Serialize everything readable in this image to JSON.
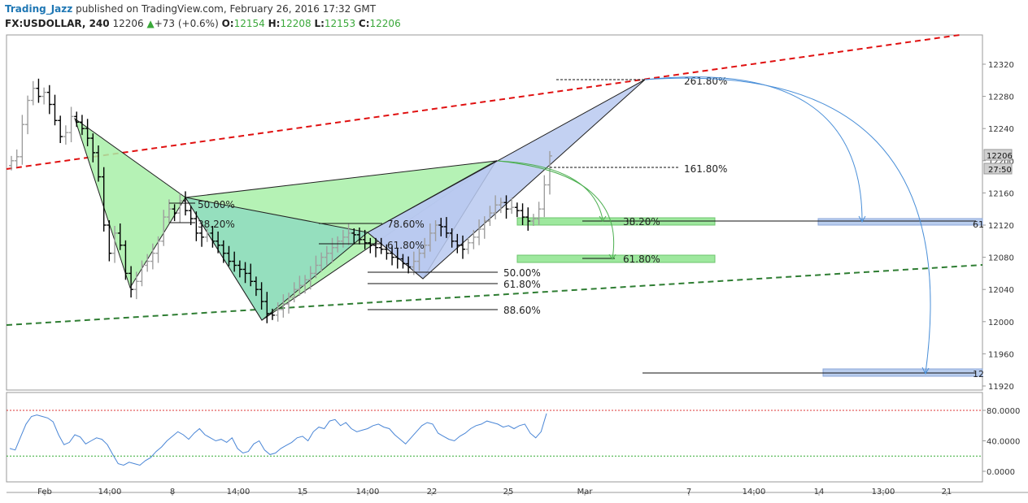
{
  "header": {
    "author": "Trading_Jazz",
    "published": "published on TradingView.com, February 26, 2016 17:32 GMT",
    "symbol": "FX:USDOLLAR, 240",
    "last": "12206",
    "change": "+73 (+0.6%)",
    "o_label": "O:",
    "o_value": "12154",
    "h_label": "H:",
    "h_value": "12208",
    "l_label": "L:",
    "l_value": "12153",
    "c_label": "C:",
    "c_value": "12206"
  },
  "colors": {
    "up_candle": "#9e9e9e",
    "down_candle": "#000000",
    "green_fill": "#a8f0a8",
    "blue_fill": "#b9c9f0",
    "teal_fill": "#8fdcc0",
    "resistance": "#e01010",
    "support": "#2e7d32",
    "arrow": "#4a8fd8",
    "oscillator": "#4a86d6"
  },
  "chart_data": [
    {
      "type": "candlestick",
      "title": "",
      "yaxis_ticks": [
        "12320",
        "12280",
        "12240",
        "12200",
        "12160",
        "12120",
        "12080",
        "12040",
        "12000",
        "11960",
        "11920"
      ],
      "ylim": [
        11910,
        12345
      ],
      "xaxis_ticks": [
        "Feb",
        "14:00",
        "8",
        "14:00",
        "15",
        "14:00",
        "22",
        "25",
        "Mar",
        "7",
        "14:00",
        "14",
        "13:00",
        "21"
      ],
      "price_badge": "12206",
      "countdown_badge": "27:50",
      "close_series": [
        12200,
        12205,
        12245,
        12275,
        12290,
        12280,
        12285,
        12270,
        12250,
        12230,
        12235,
        12255,
        12248,
        12240,
        12228,
        12210,
        12180,
        12120,
        12085,
        12110,
        12095,
        12060,
        12040,
        12050,
        12070,
        12075,
        12085,
        12100,
        12130,
        12140,
        12135,
        12150,
        12138,
        12128,
        12110,
        12105,
        12110,
        12100,
        12095,
        12085,
        12075,
        12070,
        12065,
        12060,
        12050,
        12040,
        12025,
        12010,
        12008,
        12015,
        12022,
        12030,
        12040,
        12045,
        12052,
        12060,
        12070,
        12080,
        12085,
        12092,
        12100,
        12105,
        12110,
        12108,
        12102,
        12098,
        12095,
        12092,
        12090,
        12085,
        12080,
        12078,
        12072,
        12068,
        12075,
        12085,
        12095,
        12110,
        12120,
        12118,
        12110,
        12100,
        12095,
        12090,
        12098,
        12105,
        12115,
        12125,
        12135,
        12145,
        12148,
        12140,
        12142,
        12138,
        12130,
        12125,
        12128,
        12140,
        12170,
        12206
      ],
      "patterns": {
        "xabcd_left_labels": [
          "50.00%",
          "38.20%"
        ],
        "xabcd_mid_labels": [
          "78.60%",
          "61.80%"
        ],
        "retracement_labels": [
          "50.00%",
          "61.80%",
          "88.60%"
        ],
        "extension_labels": [
          "261.80%",
          "161.80%"
        ],
        "target_labels": [
          "38.20%",
          "61.80%"
        ],
        "far_target_labels": [
          "61",
          "12"
        ]
      }
    },
    {
      "type": "line",
      "title": "",
      "yaxis_ticks": [
        "80.0000",
        "40.0000",
        "0.0000"
      ],
      "ylim": [
        -15,
        95
      ],
      "levels": [
        80,
        20
      ],
      "values": [
        30,
        28,
        45,
        62,
        72,
        74,
        72,
        70,
        65,
        48,
        35,
        38,
        48,
        45,
        36,
        40,
        44,
        42,
        35,
        22,
        10,
        8,
        12,
        10,
        8,
        14,
        18,
        26,
        32,
        40,
        46,
        52,
        48,
        42,
        50,
        56,
        48,
        44,
        40,
        42,
        38,
        44,
        30,
        24,
        26,
        36,
        40,
        28,
        22,
        24,
        30,
        34,
        38,
        44,
        46,
        40,
        52,
        58,
        56,
        66,
        68,
        60,
        64,
        56,
        52,
        54,
        56,
        60,
        62,
        58,
        56,
        48,
        42,
        36,
        44,
        52,
        60,
        64,
        62,
        50,
        46,
        42,
        40,
        46,
        50,
        56,
        60,
        62,
        66,
        64,
        62,
        58,
        60,
        56,
        60,
        62,
        50,
        44,
        52,
        76
      ]
    }
  ]
}
